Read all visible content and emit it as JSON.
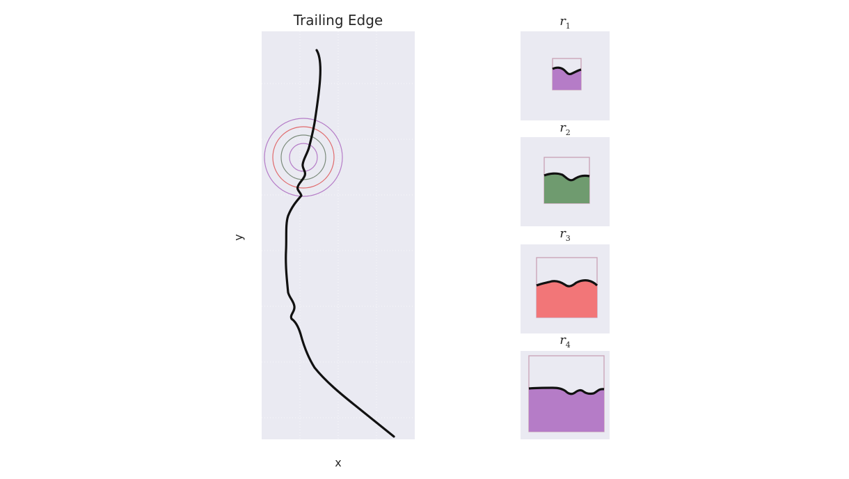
{
  "main": {
    "title": "Trailing Edge",
    "xlabel": "x",
    "ylabel": "y"
  },
  "colors": {
    "background": "#eaeaf2",
    "edge": "#111111",
    "r1": "#b57cc7",
    "r2": "#6f9b6f",
    "r3": "#f27678",
    "r4": "#b57cc7",
    "box": "#c9a0b4"
  },
  "insets": [
    {
      "label": "r",
      "sub": "1",
      "color": "#b57cc7"
    },
    {
      "label": "r",
      "sub": "2",
      "color": "#6f9b6f"
    },
    {
      "label": "r",
      "sub": "3",
      "color": "#f27678"
    },
    {
      "label": "r",
      "sub": "4",
      "color": "#b57cc7"
    }
  ],
  "rings": [
    {
      "name": "r1",
      "color": "#b57cc7"
    },
    {
      "name": "r2",
      "color": "#7a8a7a"
    },
    {
      "name": "r3",
      "color": "#e06a6c"
    },
    {
      "name": "r4",
      "color": "#b57cc7"
    }
  ]
}
